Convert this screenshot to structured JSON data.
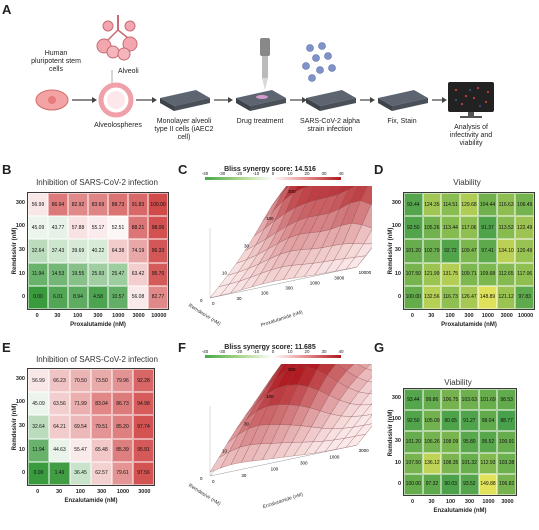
{
  "panels": {
    "a": "A",
    "b": "B",
    "c": "C",
    "d": "D",
    "e": "E",
    "f": "F",
    "g": "G"
  },
  "workflow": {
    "stem_cells": "Human pluripotent stem cells",
    "alveoli": "Alveoli",
    "alveolospheres": "Alveolospheres",
    "monolayer": "Monolayer alveoli type II cells (iAEC2 cell)",
    "drug_treatment": "Drug treatment",
    "infection": "SARS-CoV-2 alpha strain infection",
    "fix_stain": "Fix, Stain",
    "analysis": "Analysis of infectivity and viability"
  },
  "row1": {
    "inhibition_title": "Inhibition of SARS-CoV-2 infection",
    "viability_title": "Viability",
    "y_label": "Remdesivir (nM)",
    "x_label": "Proxalutamide (nM)",
    "bliss_title": "Bliss synergy score: 14.516",
    "y_ticks": [
      "300",
      "100",
      "30",
      "10",
      "0"
    ],
    "x_ticks": [
      "0",
      "30",
      "100",
      "300",
      "1000",
      "3000",
      "10000"
    ],
    "surface_y_axis": "Remdesivir (nM)",
    "surface_x_axis": "Proxalutamide (nM)",
    "surface_y_ticks": [
      "0",
      "10",
      "30",
      "100",
      "300"
    ],
    "surface_x_ticks": [
      "0",
      "30",
      "100",
      "300",
      "1000",
      "3000",
      "10000"
    ],
    "inhibition": [
      [
        "56.99",
        "86.94",
        "82.92",
        "83.69",
        "88.73",
        "91.83",
        "100.00"
      ],
      [
        "45.09",
        "43.77",
        "57.88",
        "55.17",
        "52.51",
        "88.21",
        "98.06"
      ],
      [
        "32.64",
        "37.43",
        "39.69",
        "40.22",
        "64.38",
        "74.19",
        "96.33"
      ],
      [
        "11.94",
        "14.53",
        "19.55",
        "25.93",
        "25.47",
        "63.42",
        "95.70"
      ],
      [
        "0.00",
        "6.01",
        "8.94",
        "4.58",
        "10.57",
        "56.08",
        "82.77"
      ]
    ],
    "viability": [
      [
        "93.44",
        "124.35",
        "114.51",
        "129.68",
        "104.44",
        "116.63",
        "106.49"
      ],
      [
        "92.50",
        "105.26",
        "113.44",
        "117.06",
        "91.37",
        "113.52",
        "122.49"
      ],
      [
        "101.20",
        "102.79",
        "92.72",
        "109.47",
        "97.41",
        "134.10",
        "120.49"
      ],
      [
        "107.50",
        "121.99",
        "131.75",
        "109.71",
        "109.68",
        "112.65",
        "117.06"
      ],
      [
        "100.00",
        "132.56",
        "116.73",
        "126.47",
        "148.89",
        "121.12",
        "97.83"
      ]
    ]
  },
  "row2": {
    "inhibition_title": "Inhibition of SARS-CoV-2 infection",
    "viability_title": "Viability",
    "y_label": "Remdesivir (nM)",
    "x_label": "Enzalutamide (nM)",
    "bliss_title": "Bliss synergy score: 11.685",
    "y_ticks": [
      "300",
      "100",
      "30",
      "10",
      "0"
    ],
    "x_ticks": [
      "0",
      "30",
      "100",
      "300",
      "1000",
      "3000"
    ],
    "surface_y_axis": "Remdesivir (nM)",
    "surface_x_axis": "Enzalutamide (nM)",
    "surface_y_ticks": [
      "0",
      "10",
      "30",
      "100",
      "300"
    ],
    "surface_x_ticks": [
      "0",
      "30",
      "100",
      "300",
      "1000",
      "3000"
    ],
    "inhibition": [
      [
        "56.99",
        "66.23",
        "70.50",
        "73.50",
        "79.96",
        "92.28"
      ],
      [
        "45.09",
        "63.56",
        "71.99",
        "83.04",
        "86.73",
        "94.98"
      ],
      [
        "32.64",
        "64.21",
        "69.54",
        "79.51",
        "85.20",
        "97.74"
      ],
      [
        "11.94",
        "44.63",
        "55.47",
        "65.48",
        "85.39",
        "95.91"
      ],
      [
        "0.00",
        "1.49",
        "36.45",
        "62.57",
        "79.61",
        "97.56"
      ]
    ],
    "viability": [
      [
        "93.44",
        "99.86",
        "106.75",
        "103.63",
        "101.69",
        "98.53"
      ],
      [
        "92.50",
        "105.09",
        "90.65",
        "91.27",
        "98.04",
        "88.77"
      ],
      [
        "101.20",
        "106.26",
        "108.09",
        "95.80",
        "95.52",
        "100.91"
      ],
      [
        "107.50",
        "136.12",
        "108.35",
        "101.32",
        "112.93",
        "103.38"
      ],
      [
        "100.00",
        "97.32",
        "90.03",
        "93.52",
        "149.88",
        "106.82"
      ]
    ]
  },
  "colorbar_ticks": [
    "-40",
    "-30",
    "-20",
    "-10",
    "0",
    "10",
    "20",
    "30",
    "40"
  ],
  "colors": {
    "inhib_low": "#3a9a3e",
    "inhib_mid": "#ffffff",
    "inhib_high": "#d14a4a",
    "via_low": "#3f9c49",
    "via_high": "#e2e25a"
  }
}
